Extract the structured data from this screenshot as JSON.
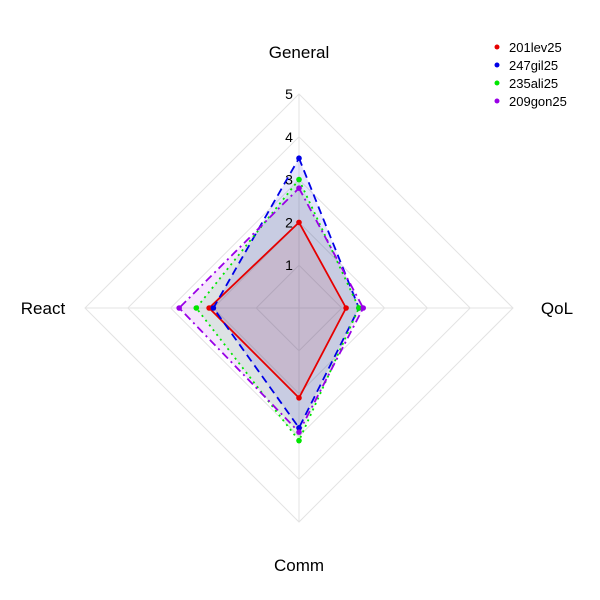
{
  "chart_data": {
    "type": "radar",
    "axes": [
      "General",
      "QoL",
      "Comm",
      "React"
    ],
    "rlim": [
      0,
      5
    ],
    "ticks": [
      "1",
      "2",
      "3",
      "4",
      "5"
    ],
    "grid": true,
    "legend_position": "top-right",
    "series": [
      {
        "name": "201lev25",
        "values": [
          2.0,
          1.1,
          2.1,
          2.1
        ],
        "color": "#e60000",
        "dash": "solid"
      },
      {
        "name": "247gil25",
        "values": [
          3.5,
          1.4,
          2.8,
          2.0
        ],
        "color": "#0000e6",
        "dash": "dash"
      },
      {
        "name": "235ali25",
        "values": [
          3.0,
          1.4,
          3.1,
          2.4
        ],
        "color": "#00e600",
        "dash": "dot"
      },
      {
        "name": "209gon25",
        "values": [
          2.8,
          1.5,
          2.9,
          2.8
        ],
        "color": "#9900e6",
        "dash": "dashdot"
      }
    ]
  }
}
